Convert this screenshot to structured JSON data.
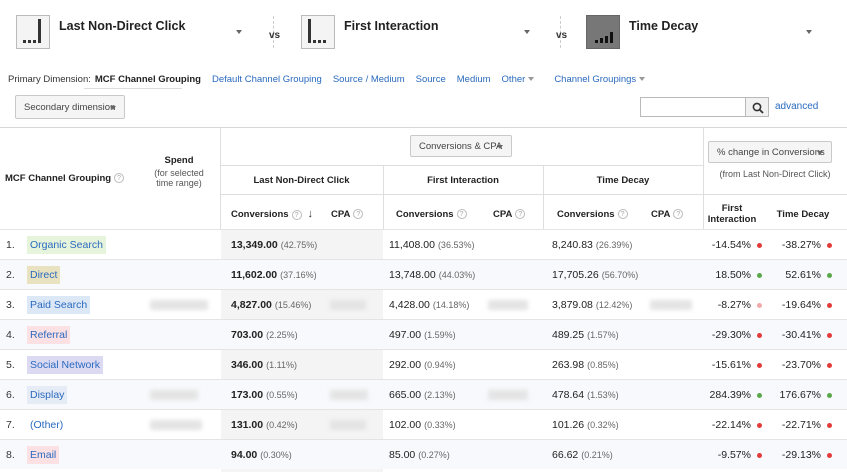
{
  "models": [
    {
      "name": "Last Non-Direct Click",
      "icon": "last-non-direct-click-model-icon"
    },
    {
      "name": "First Interaction",
      "icon": "first-interaction-model-icon"
    },
    {
      "name": "Time Decay",
      "icon": "time-decay-model-icon"
    }
  ],
  "vs_label": "vs",
  "primary_dimension": {
    "label": "Primary Dimension:",
    "active": "MCF Channel Grouping",
    "links": [
      "Default Channel Grouping",
      "Source / Medium",
      "Source",
      "Medium",
      "Other"
    ],
    "channel_groupings": "Channel Groupings"
  },
  "toolbar": {
    "secondary_dimension": "Secondary dimension",
    "search_placeholder": "",
    "advanced": "advanced"
  },
  "table": {
    "col_channel": "MCF Channel Grouping",
    "col_spend": "Spend",
    "col_spend_sub": "(for selected time range)",
    "metric_selector": "Conversions & CPA",
    "change_selector": "% change in Conversions",
    "change_sub": "(from Last Non-Direct Click)",
    "groups": [
      "Last Non-Direct Click",
      "First Interaction",
      "Time Decay"
    ],
    "sub_conversions": "Conversions",
    "sub_cpa": "CPA",
    "sub_first_interaction": "First Interaction",
    "sub_time_decay": "Time Decay",
    "rows": [
      {
        "idx": "1.",
        "channel": "Organic Search",
        "color": "#e7f4dc",
        "lndc": "13,349.00",
        "lndc_pct": "(42.75%)",
        "fi": "11,408.00",
        "fi_pct": "(36.53%)",
        "td": "8,240.83",
        "td_pct": "(26.39%)",
        "chg_fi": "-14.54%",
        "chg_td": "-38.27%",
        "dot_fi": "#e23b3b",
        "dot_td": "#e23b3b"
      },
      {
        "idx": "2.",
        "channel": "Direct",
        "color": "#e8e2c0",
        "lndc": "11,602.00",
        "lndc_pct": "(37.16%)",
        "fi": "13,748.00",
        "fi_pct": "(44.03%)",
        "td": "17,705.26",
        "td_pct": "(56.70%)",
        "chg_fi": "18.50%",
        "chg_td": "52.61%",
        "dot_fi": "#5aa84a",
        "dot_td": "#5aa84a"
      },
      {
        "idx": "3.",
        "channel": "Paid Search",
        "color": "#dde8f7",
        "lndc": "4,827.00",
        "lndc_pct": "(15.46%)",
        "fi": "4,428.00",
        "fi_pct": "(14.18%)",
        "td": "3,879.08",
        "td_pct": "(12.42%)",
        "chg_fi": "-8.27%",
        "chg_td": "-19.64%",
        "dot_fi": "#f2a9a9",
        "dot_td": "#e23b3b"
      },
      {
        "idx": "4.",
        "channel": "Referral",
        "color": "#fbe0e4",
        "lndc": "703.00",
        "lndc_pct": "(2.25%)",
        "fi": "497.00",
        "fi_pct": "(1.59%)",
        "td": "489.25",
        "td_pct": "(1.57%)",
        "chg_fi": "-29.30%",
        "chg_td": "-30.41%",
        "dot_fi": "#e23b3b",
        "dot_td": "#e23b3b"
      },
      {
        "idx": "5.",
        "channel": "Social Network",
        "color": "#dcdaf3",
        "lndc": "346.00",
        "lndc_pct": "(1.11%)",
        "fi": "292.00",
        "fi_pct": "(0.94%)",
        "td": "263.98",
        "td_pct": "(0.85%)",
        "chg_fi": "-15.61%",
        "chg_td": "-23.70%",
        "dot_fi": "#e23b3b",
        "dot_td": "#e23b3b"
      },
      {
        "idx": "6.",
        "channel": "Display",
        "color": "#e6ecf5",
        "lndc": "173.00",
        "lndc_pct": "(0.55%)",
        "fi": "665.00",
        "fi_pct": "(2.13%)",
        "td": "478.64",
        "td_pct": "(1.53%)",
        "chg_fi": "284.39%",
        "chg_td": "176.67%",
        "dot_fi": "#5aa84a",
        "dot_td": "#5aa84a"
      },
      {
        "idx": "7.",
        "channel": "(Other)",
        "color": "#ffffff",
        "lndc": "131.00",
        "lndc_pct": "(0.42%)",
        "fi": "102.00",
        "fi_pct": "(0.33%)",
        "td": "101.26",
        "td_pct": "(0.32%)",
        "chg_fi": "-22.14%",
        "chg_td": "-22.71%",
        "dot_fi": "#e23b3b",
        "dot_td": "#e23b3b"
      },
      {
        "idx": "8.",
        "channel": "Email",
        "color": "#fbe0e4",
        "lndc": "94.00",
        "lndc_pct": "(0.30%)",
        "fi": "85.00",
        "fi_pct": "(0.27%)",
        "td": "66.62",
        "td_pct": "(0.21%)",
        "chg_fi": "-9.57%",
        "chg_td": "-29.13%",
        "dot_fi": "#e23b3b",
        "dot_td": "#e23b3b"
      }
    ]
  }
}
